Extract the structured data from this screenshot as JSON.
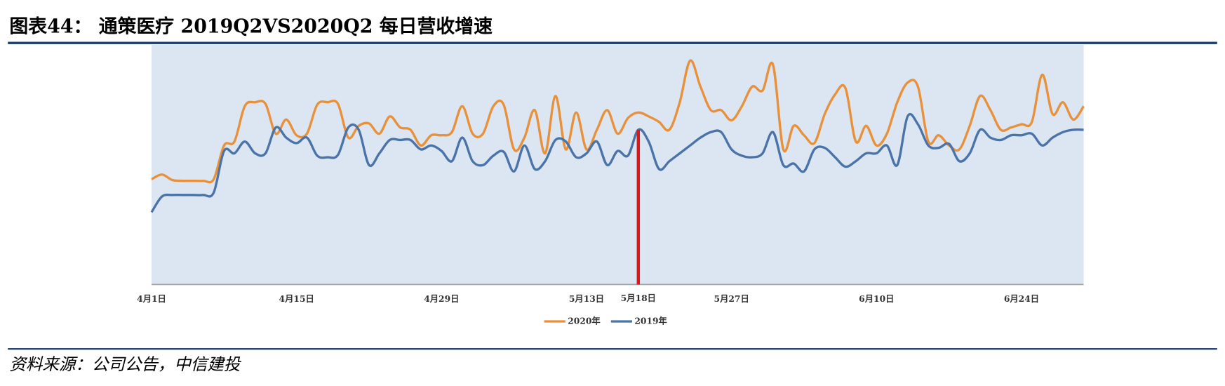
{
  "chart_data": {
    "type": "line",
    "title": "图表44：   通策医疗 2019Q2VS2020Q2 每日营收增速",
    "source": "资料来源：公司公告，中信建投",
    "categories": [
      "4月1日",
      null,
      null,
      null,
      null,
      null,
      null,
      null,
      null,
      null,
      null,
      null,
      null,
      null,
      "4月15日",
      null,
      null,
      null,
      null,
      null,
      null,
      null,
      null,
      null,
      null,
      null,
      null,
      null,
      "4月29日",
      null,
      null,
      null,
      null,
      null,
      null,
      null,
      null,
      null,
      null,
      null,
      null,
      null,
      "5月13日",
      null,
      null,
      null,
      null,
      "5月18日",
      null,
      null,
      null,
      null,
      null,
      null,
      null,
      null,
      "5月27日",
      null,
      null,
      null,
      null,
      null,
      null,
      null,
      null,
      null,
      null,
      null,
      null,
      null,
      "6月10日",
      null,
      null,
      null,
      null,
      null,
      null,
      null,
      null,
      null,
      null,
      null,
      null,
      null,
      "6月24日",
      null,
      null,
      null,
      null,
      null,
      null
    ],
    "series": [
      {
        "name": "2020年",
        "color": "#e8913a",
        "values": [
          134,
          140,
          133,
          132,
          132,
          132,
          134,
          177,
          182,
          227,
          232,
          230,
          192,
          210,
          190,
          192,
          229,
          232,
          230,
          187,
          202,
          205,
          192,
          214,
          200,
          197,
          177,
          190,
          190,
          194,
          227,
          192,
          192,
          227,
          229,
          172,
          187,
          222,
          167,
          240,
          172,
          219,
          172,
          197,
          222,
          192,
          212,
          219,
          214,
          207,
          197,
          232,
          285,
          252,
          222,
          222,
          209,
          227,
          252,
          247,
          280,
          172,
          202,
          190,
          180,
          217,
          242,
          250,
          182,
          202,
          177,
          192,
          232,
          257,
          252,
          182,
          190,
          177,
          172,
          202,
          240,
          222,
          197,
          200,
          204,
          207,
          267,
          217,
          232,
          210,
          227
        ]
      },
      {
        "name": "2019年",
        "color": "#4a73a8",
        "values": [
          92,
          112,
          114,
          114,
          114,
          114,
          117,
          170,
          167,
          182,
          167,
          167,
          200,
          187,
          180,
          187,
          164,
          162,
          165,
          200,
          197,
          152,
          167,
          184,
          184,
          184,
          172,
          177,
          170,
          157,
          187,
          157,
          152,
          164,
          169,
          144,
          177,
          147,
          157,
          184,
          182,
          162,
          167,
          182,
          152,
          170,
          164,
          197,
          182,
          147,
          157,
          167,
          177,
          187,
          194,
          194,
          172,
          164,
          162,
          167,
          194,
          152,
          154,
          144,
          172,
          174,
          162,
          150,
          157,
          167,
          167,
          177,
          152,
          214,
          204,
          177,
          174,
          179,
          157,
          167,
          197,
          187,
          184,
          190,
          190,
          192,
          177,
          187,
          194,
          197,
          197
        ]
      }
    ],
    "ylim": [
      0,
      305
    ],
    "highlight": {
      "category_index": 47,
      "color": "#d7191c"
    },
    "plot_background": "#dce6f2",
    "legend": "bottom"
  }
}
